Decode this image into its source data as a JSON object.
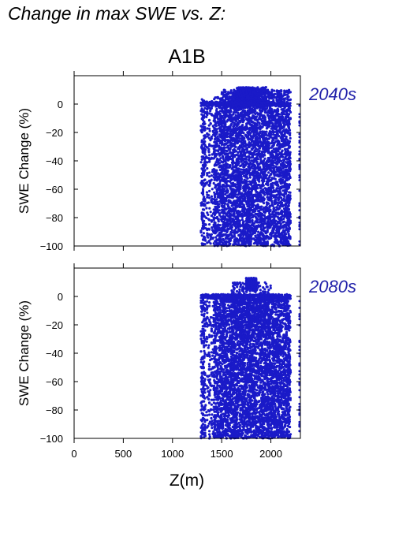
{
  "title": "Change in max SWE vs. Z:",
  "colors": {
    "points": "#1a1ac8",
    "period_label": "#2222aa",
    "axis": "#000000"
  },
  "chart_data": [
    {
      "type": "scatter",
      "scenario": "A1B",
      "period": "2040s",
      "xlabel": "Z(m)",
      "ylabel": "SWE Change (%)",
      "xlim": [
        0,
        2300
      ],
      "ylim": [
        -100,
        20
      ],
      "xticks": [
        0,
        500,
        1000,
        1500,
        2000
      ],
      "yticks": [
        -100,
        -80,
        -60,
        -40,
        -20,
        0
      ],
      "x_range_of_points": [
        1290,
        2200
      ],
      "y_range_of_points": [
        -100,
        12
      ],
      "grid": false,
      "clusters": [
        {
          "x": [
            1290,
            1330
          ],
          "y": [
            -100,
            5
          ],
          "density": "sparse"
        },
        {
          "x": [
            1330,
            1420
          ],
          "y": [
            -100,
            5
          ],
          "density": "sparse"
        },
        {
          "x": [
            1420,
            1500
          ],
          "y": [
            -100,
            5
          ],
          "density": "moderate"
        },
        {
          "x": [
            1500,
            2200
          ],
          "y": [
            -100,
            10
          ],
          "density": "dense"
        },
        {
          "x": [
            1650,
            1950
          ],
          "y": [
            0,
            12
          ],
          "density": "moderate"
        }
      ]
    },
    {
      "type": "scatter",
      "scenario": "A1B",
      "period": "2080s",
      "xlabel": "Z(m)",
      "ylabel": "SWE Change (%)",
      "xlim": [
        0,
        2300
      ],
      "ylim": [
        -100,
        20
      ],
      "xticks": [
        0,
        500,
        1000,
        1500,
        2000
      ],
      "yticks": [
        -100,
        -80,
        -60,
        -40,
        -20,
        0
      ],
      "x_range_of_points": [
        1290,
        2200
      ],
      "y_range_of_points": [
        -100,
        13
      ],
      "grid": false,
      "clusters": [
        {
          "x": [
            1290,
            1330
          ],
          "y": [
            -100,
            0
          ],
          "density": "sparse"
        },
        {
          "x": [
            1330,
            1420
          ],
          "y": [
            -100,
            0
          ],
          "density": "sparse"
        },
        {
          "x": [
            1420,
            1500
          ],
          "y": [
            -100,
            0
          ],
          "density": "moderate"
        },
        {
          "x": [
            1500,
            2200
          ],
          "y": [
            -100,
            0
          ],
          "density": "dense"
        },
        {
          "x": [
            1600,
            2000
          ],
          "y": [
            -30,
            10
          ],
          "density": "moderate"
        },
        {
          "x": [
            1750,
            1850
          ],
          "y": [
            5,
            13
          ],
          "density": "sparse"
        }
      ]
    }
  ]
}
